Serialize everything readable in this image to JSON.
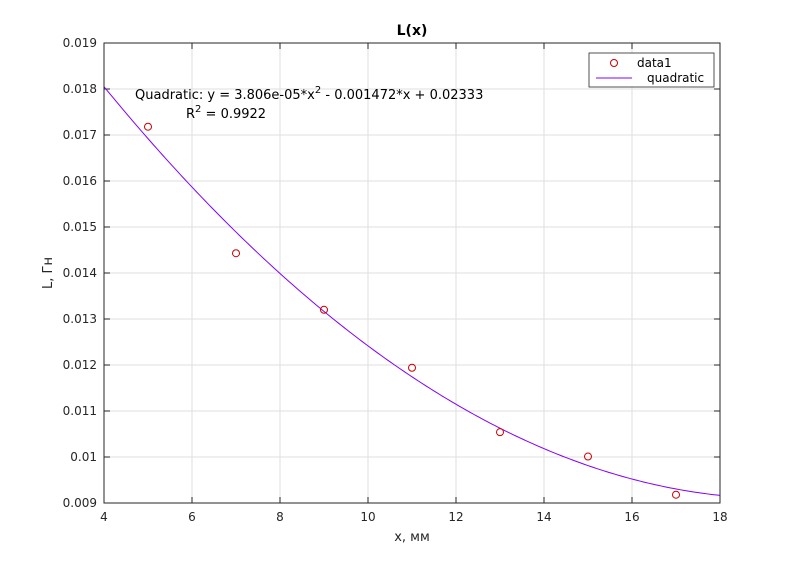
{
  "chart_data": {
    "type": "scatter",
    "title": "L(x)",
    "xlabel": "x, мм",
    "ylabel": "L, Гн",
    "xlim": [
      4,
      18
    ],
    "ylim": [
      0.009,
      0.019
    ],
    "x_ticks": [
      4,
      6,
      8,
      10,
      12,
      14,
      16,
      18
    ],
    "x_tick_labels": [
      "4",
      "6",
      "8",
      "10",
      "12",
      "14",
      "16",
      "18"
    ],
    "y_ticks": [
      0.009,
      0.01,
      0.011,
      0.012,
      0.013,
      0.014,
      0.015,
      0.016,
      0.017,
      0.018,
      0.019
    ],
    "y_tick_labels": [
      "0.009",
      "0.01",
      "0.011",
      "0.012",
      "0.013",
      "0.014",
      "0.015",
      "0.016",
      "0.017",
      "0.018",
      "0.019"
    ],
    "grid": true,
    "legend_position": "top-right",
    "series": [
      {
        "name": "data1",
        "kind": "markers",
        "marker": "circle",
        "color": "#cc0000",
        "x": [
          5,
          7,
          9,
          11,
          13,
          15,
          17
        ],
        "y": [
          0.01718,
          0.01443,
          0.0132,
          0.01194,
          0.01054,
          0.01001,
          0.00918
        ]
      },
      {
        "name": "quadratic",
        "kind": "fit-line",
        "color": "#8000ff",
        "coefficients": [
          3.806e-05,
          -0.001472,
          0.02333
        ]
      }
    ],
    "annotations": {
      "equation_prefix": "Quadratic:  y = 3.806e-05*x",
      "equation_exp": "2",
      "equation_suffix": " - 0.001472*x + 0.02333",
      "r2_prefix": "R",
      "r2_exp": "2",
      "r2_suffix": " = 0.9922"
    }
  }
}
